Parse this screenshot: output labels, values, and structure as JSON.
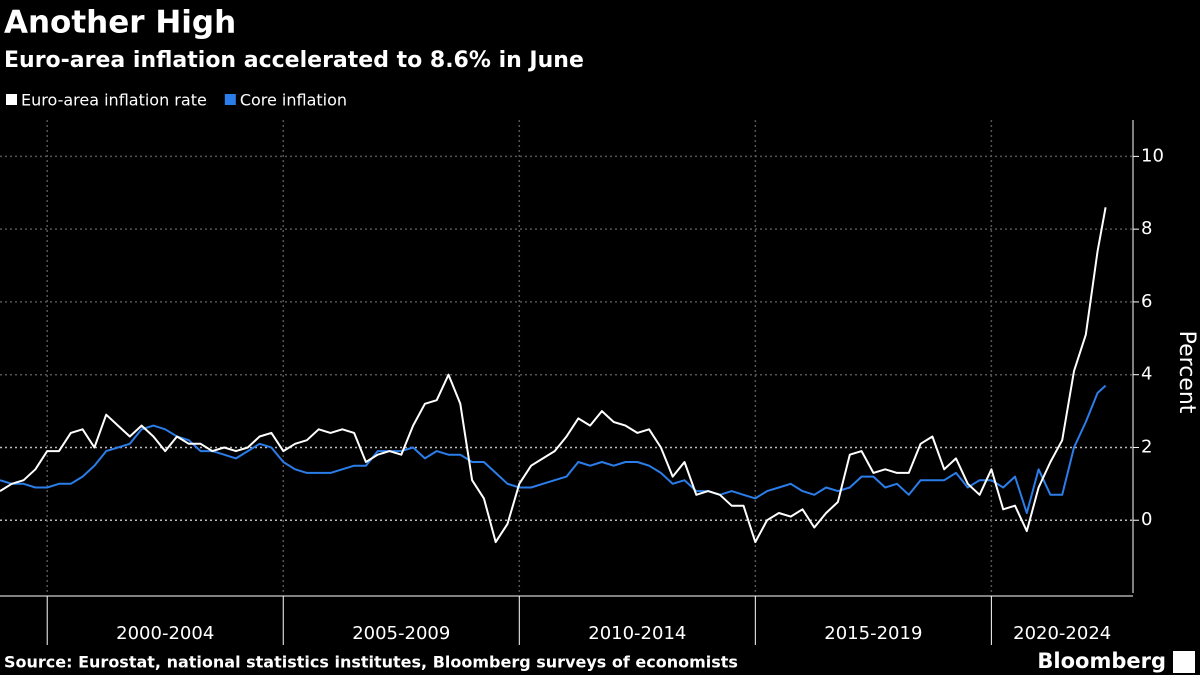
{
  "chart_data": {
    "type": "line",
    "title": "Another High",
    "subtitle": "Euro-area inflation accelerated to 8.6% in June",
    "y_label": "Percent",
    "source": "Source: Eurostat, national statistics institutes, Bloomberg surveys of economists",
    "brand": "Bloomberg",
    "legend": "top-left",
    "grid": true,
    "x_period_labels": [
      "2000-2004",
      "2005-2009",
      "2010-2014",
      "2015-2019",
      "2020-2024"
    ],
    "xlim": [
      1999,
      2023
    ],
    "xticks": [
      2000,
      2005,
      2010,
      2015,
      2020
    ],
    "ylim": [
      -2,
      11
    ],
    "yticks": [
      0,
      2,
      4,
      6,
      8,
      10
    ],
    "x": [
      1999,
      1999.25,
      1999.5,
      1999.75,
      2000,
      2000.25,
      2000.5,
      2000.75,
      2001,
      2001.25,
      2001.5,
      2001.75,
      2002,
      2002.25,
      2002.5,
      2002.75,
      2003,
      2003.25,
      2003.5,
      2003.75,
      2004,
      2004.25,
      2004.5,
      2004.75,
      2005,
      2005.25,
      2005.5,
      2005.75,
      2006,
      2006.25,
      2006.5,
      2006.75,
      2007,
      2007.25,
      2007.5,
      2007.75,
      2008,
      2008.25,
      2008.5,
      2008.75,
      2009,
      2009.25,
      2009.5,
      2009.75,
      2010,
      2010.25,
      2010.5,
      2010.75,
      2011,
      2011.25,
      2011.5,
      2011.75,
      2012,
      2012.25,
      2012.5,
      2012.75,
      2013,
      2013.25,
      2013.5,
      2013.75,
      2014,
      2014.25,
      2014.5,
      2014.75,
      2015,
      2015.25,
      2015.5,
      2015.75,
      2016,
      2016.25,
      2016.5,
      2016.75,
      2017,
      2017.25,
      2017.5,
      2017.75,
      2018,
      2018.25,
      2018.5,
      2018.75,
      2019,
      2019.25,
      2019.5,
      2019.75,
      2020,
      2020.25,
      2020.5,
      2020.75,
      2021,
      2021.25,
      2021.5,
      2021.75,
      2022,
      2022.25,
      2022.42
    ],
    "series": [
      {
        "name": "Euro-area inflation rate",
        "color": "#ffffff",
        "values": [
          0.8,
          1.0,
          1.1,
          1.4,
          1.9,
          1.9,
          2.4,
          2.5,
          2.0,
          2.9,
          2.6,
          2.3,
          2.6,
          2.3,
          1.9,
          2.3,
          2.1,
          2.1,
          1.9,
          2.0,
          1.9,
          2.0,
          2.3,
          2.4,
          1.9,
          2.1,
          2.2,
          2.5,
          2.4,
          2.5,
          2.4,
          1.6,
          1.8,
          1.9,
          1.8,
          2.6,
          3.2,
          3.3,
          4.0,
          3.2,
          1.1,
          0.6,
          -0.6,
          -0.1,
          1.0,
          1.5,
          1.7,
          1.9,
          2.3,
          2.8,
          2.6,
          3.0,
          2.7,
          2.6,
          2.4,
          2.5,
          2.0,
          1.2,
          1.6,
          0.7,
          0.8,
          0.7,
          0.4,
          0.4,
          -0.6,
          0.0,
          0.2,
          0.1,
          0.3,
          -0.2,
          0.2,
          0.5,
          1.8,
          1.9,
          1.3,
          1.4,
          1.3,
          1.3,
          2.1,
          2.3,
          1.4,
          1.7,
          1.0,
          0.7,
          1.4,
          0.3,
          0.4,
          -0.3,
          0.9,
          1.6,
          2.2,
          4.1,
          5.1,
          7.4,
          8.6
        ]
      },
      {
        "name": "Core inflation",
        "color": "#2b7de9",
        "values": [
          1.1,
          1.0,
          1.0,
          0.9,
          0.9,
          1.0,
          1.0,
          1.2,
          1.5,
          1.9,
          2.0,
          2.1,
          2.5,
          2.6,
          2.5,
          2.3,
          2.2,
          1.9,
          1.9,
          1.8,
          1.7,
          1.9,
          2.1,
          2.0,
          1.6,
          1.4,
          1.3,
          1.3,
          1.3,
          1.4,
          1.5,
          1.5,
          1.9,
          1.9,
          1.9,
          2.0,
          1.7,
          1.9,
          1.8,
          1.8,
          1.6,
          1.6,
          1.3,
          1.0,
          0.9,
          0.9,
          1.0,
          1.1,
          1.2,
          1.6,
          1.5,
          1.6,
          1.5,
          1.6,
          1.6,
          1.5,
          1.3,
          1.0,
          1.1,
          0.8,
          0.8,
          0.7,
          0.8,
          0.7,
          0.6,
          0.8,
          0.9,
          1.0,
          0.8,
          0.7,
          0.9,
          0.8,
          0.9,
          1.2,
          1.2,
          0.9,
          1.0,
          0.7,
          1.1,
          1.1,
          1.1,
          1.3,
          0.9,
          1.1,
          1.1,
          0.9,
          1.2,
          0.2,
          1.4,
          0.7,
          0.7,
          2.0,
          2.7,
          3.5,
          3.7
        ]
      }
    ]
  }
}
